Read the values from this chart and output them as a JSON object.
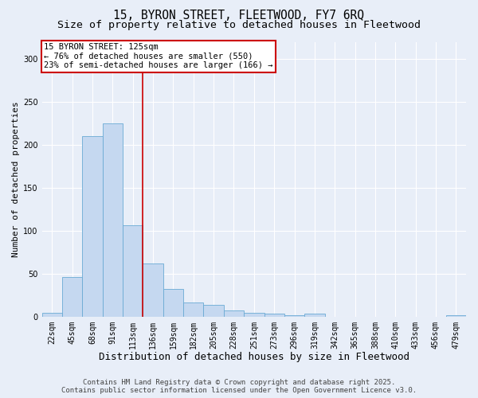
{
  "title1": "15, BYRON STREET, FLEETWOOD, FY7 6RQ",
  "title2": "Size of property relative to detached houses in Fleetwood",
  "xlabel": "Distribution of detached houses by size in Fleetwood",
  "ylabel": "Number of detached properties",
  "categories": [
    "22sqm",
    "45sqm",
    "68sqm",
    "91sqm",
    "113sqm",
    "136sqm",
    "159sqm",
    "182sqm",
    "205sqm",
    "228sqm",
    "251sqm",
    "273sqm",
    "296sqm",
    "319sqm",
    "342sqm",
    "365sqm",
    "388sqm",
    "410sqm",
    "433sqm",
    "456sqm",
    "479sqm"
  ],
  "values": [
    4,
    46,
    210,
    225,
    106,
    62,
    32,
    16,
    14,
    7,
    4,
    3,
    2,
    3,
    0,
    0,
    0,
    0,
    0,
    0,
    2
  ],
  "bar_color": "#c5d8f0",
  "bar_edge_color": "#6aaad4",
  "bar_edge_width": 0.6,
  "vline_color": "#cc0000",
  "annotation_text": "15 BYRON STREET: 125sqm\n← 76% of detached houses are smaller (550)\n23% of semi-detached houses are larger (166) →",
  "annotation_box_color": "#ffffff",
  "annotation_box_edge": "#cc0000",
  "ylim": [
    0,
    320
  ],
  "yticks": [
    0,
    50,
    100,
    150,
    200,
    250,
    300
  ],
  "background_color": "#e8eef8",
  "grid_color": "#ffffff",
  "footer1": "Contains HM Land Registry data © Crown copyright and database right 2025.",
  "footer2": "Contains public sector information licensed under the Open Government Licence v3.0.",
  "title1_fontsize": 10.5,
  "title2_fontsize": 9.5,
  "xlabel_fontsize": 9,
  "ylabel_fontsize": 8,
  "tick_fontsize": 7,
  "annotation_fontsize": 7.5,
  "footer_fontsize": 6.5
}
